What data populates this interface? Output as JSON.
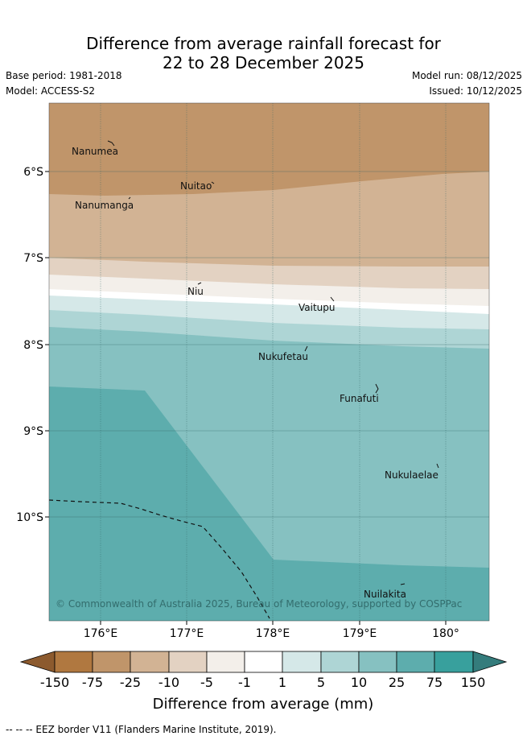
{
  "title": {
    "line1": "Difference from average rainfall forecast for",
    "line2": "22 to 28 December 2025"
  },
  "meta": {
    "base_period": "Base period: 1981-2018",
    "model": "Model: ACCESS-S2",
    "model_run": "Model run: 08/12/2025",
    "issued": "Issued: 10/12/2025"
  },
  "map": {
    "lat_labels": [
      "6°S",
      "7°S",
      "8°S",
      "9°S",
      "10°S"
    ],
    "lon_labels": [
      "176°E",
      "177°E",
      "178°E",
      "179°E",
      "180°"
    ],
    "places": [
      "Nanumea",
      "Nuitao",
      "Nanumanga",
      "Niu",
      "Vaitupu",
      "Nukufetau",
      "Funafuti",
      "Nukulaelae",
      "Nuilakita"
    ],
    "copyright": "© Commonwealth of Australia 2025, Bureau of Meteorology, supported by COSPPac"
  },
  "legend": {
    "ticks": [
      "-150",
      "-75",
      "-25",
      "-10",
      "-5",
      "-1",
      "1",
      "5",
      "10",
      "25",
      "75",
      "150"
    ],
    "colors": [
      "#8c5a2e",
      "#b07840",
      "#c0956a",
      "#d2b394",
      "#e3d2c2",
      "#f3efea",
      "#ffffff",
      "#d5e8e8",
      "#aed5d5",
      "#86c1c1",
      "#5dadad",
      "#38a09d",
      "#347c7c"
    ],
    "label": "Difference from average (mm)"
  },
  "footer": "--  --  -- EEZ border V11 (Flanders Marine Institute, 2019)."
}
